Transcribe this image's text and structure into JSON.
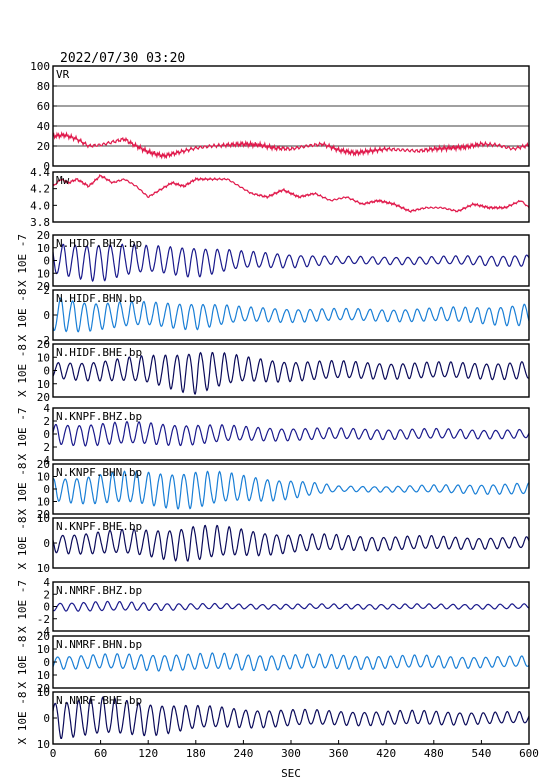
{
  "header": {
    "datetime": "2022/07/30 03:20"
  },
  "x_axis": {
    "label": "SEC",
    "ticks": [
      "0",
      "60",
      "120",
      "180",
      "240",
      "300",
      "360",
      "420",
      "480",
      "540",
      "600"
    ]
  },
  "chart_data": [
    {
      "type": "line",
      "panel": "VR",
      "title": "VR",
      "xlim": [
        0,
        600
      ],
      "ylim": [
        0,
        100
      ],
      "yticks": [
        "100",
        "80",
        "60",
        "40",
        "20",
        "0"
      ],
      "grid": true,
      "color": "#e0194b",
      "ylabel": "",
      "series": [
        {
          "x": [
            0,
            15,
            30,
            45,
            60,
            75,
            90,
            100,
            120,
            140,
            160,
            180,
            200,
            220,
            240,
            260,
            280,
            300,
            320,
            340,
            360,
            380,
            400,
            420,
            440,
            460,
            480,
            500,
            520,
            540,
            560,
            580,
            600
          ],
          "values": [
            30,
            31,
            27,
            20,
            21,
            24,
            27,
            22,
            14,
            10,
            14,
            18,
            20,
            21,
            22,
            21,
            18,
            17,
            20,
            22,
            16,
            13,
            15,
            17,
            16,
            15,
            17,
            18,
            19,
            22,
            21,
            17,
            21
          ]
        }
      ]
    },
    {
      "type": "line",
      "panel": "Mw",
      "title": "Mw",
      "xlim": [
        0,
        600
      ],
      "ylim": [
        3.7,
        4.4
      ],
      "yticks": [
        "4.4",
        "4.2",
        "4.0",
        "3.8"
      ],
      "grid": false,
      "color": "#e0194b",
      "ylabel": "",
      "series": [
        {
          "x": [
            0,
            10,
            20,
            30,
            45,
            60,
            75,
            90,
            105,
            120,
            135,
            150,
            165,
            180,
            200,
            220,
            235,
            250,
            270,
            290,
            310,
            330,
            350,
            370,
            390,
            410,
            430,
            450,
            470,
            490,
            510,
            530,
            550,
            570,
            590,
            600
          ],
          "values": [
            4.2,
            4.3,
            4.25,
            4.3,
            4.2,
            4.35,
            4.25,
            4.3,
            4.2,
            4.05,
            4.15,
            4.25,
            4.2,
            4.3,
            4.3,
            4.3,
            4.2,
            4.1,
            4.05,
            4.15,
            4.05,
            4.1,
            4.0,
            4.05,
            3.95,
            4.0,
            3.95,
            3.85,
            3.9,
            3.9,
            3.85,
            3.95,
            3.9,
            3.9,
            4.0,
            3.9
          ]
        }
      ]
    },
    {
      "type": "line",
      "panel": "wave",
      "title": "N.HIDF.BHZ.bp",
      "ylabel": "X 10E -7",
      "yticks": [
        "20",
        "10",
        "0",
        "10",
        "20"
      ],
      "ylim": [
        -2.4,
        2.4
      ],
      "xlim": [
        0,
        600
      ],
      "color": "#1a1a8c",
      "period": 15,
      "amp_x": [
        0,
        60,
        120,
        180,
        240,
        300,
        360,
        420,
        480,
        540,
        600
      ],
      "amplitude": [
        1.6,
        2.0,
        1.4,
        1.6,
        0.9,
        0.7,
        0.4,
        0.4,
        0.4,
        0.5,
        0.6
      ]
    },
    {
      "type": "line",
      "panel": "wave",
      "title": "N.HIDF.BHN.bp",
      "ylabel": "X 10E -8",
      "yticks": [
        "2",
        "0",
        "-2"
      ],
      "ylim": [
        -3,
        3
      ],
      "xlim": [
        0,
        600
      ],
      "color": "#1a7fd6",
      "period": 15,
      "amp_x": [
        0,
        60,
        120,
        180,
        240,
        300,
        360,
        420,
        480,
        540,
        600
      ],
      "amplitude": [
        2.4,
        1.8,
        1.6,
        1.8,
        1.0,
        0.9,
        0.8,
        0.8,
        0.9,
        1.1,
        1.5
      ]
    },
    {
      "type": "line",
      "panel": "wave",
      "title": "N.HIDF.BHE.bp",
      "ylabel": "X 10E -8",
      "yticks": [
        "20",
        "10",
        "0",
        "10",
        "20"
      ],
      "ylim": [
        -2.4,
        2.4
      ],
      "xlim": [
        0,
        600
      ],
      "color": "#0b0b5a",
      "period": 15,
      "amp_x": [
        0,
        60,
        120,
        180,
        240,
        300,
        360,
        420,
        480,
        540,
        600
      ],
      "amplitude": [
        0.8,
        1.0,
        1.4,
        2.2,
        1.3,
        1.0,
        0.9,
        0.8,
        0.8,
        0.8,
        0.9
      ]
    },
    {
      "type": "line",
      "panel": "wave",
      "title": "N.KNPF.BHZ.bp",
      "ylabel": "X 10E -7",
      "yticks": [
        "4",
        "2",
        "0",
        "2",
        "4"
      ],
      "ylim": [
        -4.2,
        4.2
      ],
      "xlim": [
        0,
        600
      ],
      "color": "#1a1a8c",
      "period": 15,
      "amp_x": [
        0,
        60,
        120,
        180,
        240,
        300,
        360,
        420,
        480,
        540,
        600
      ],
      "amplitude": [
        1.8,
        2.0,
        2.0,
        1.8,
        1.3,
        1.1,
        1.0,
        0.9,
        0.9,
        0.8,
        0.8
      ]
    },
    {
      "type": "line",
      "panel": "wave",
      "title": "N.KNPF.BHN.bp",
      "ylabel": "X 10E -8",
      "yticks": [
        "20",
        "10",
        "0",
        "10",
        "20"
      ],
      "ylim": [
        -2.4,
        2.4
      ],
      "xlim": [
        0,
        600
      ],
      "color": "#1a7fd6",
      "period": 15,
      "amp_x": [
        0,
        60,
        120,
        180,
        240,
        300,
        360,
        420,
        480,
        540,
        600
      ],
      "amplitude": [
        1.2,
        1.6,
        1.8,
        2.0,
        1.4,
        1.0,
        0.3,
        0.3,
        0.4,
        0.5,
        0.6
      ]
    },
    {
      "type": "line",
      "panel": "wave",
      "title": "N.KNPF.BHE.bp",
      "ylabel": "X 10E -8",
      "yticks": [
        "10",
        "0",
        "10"
      ],
      "ylim": [
        -2.0,
        2.0
      ],
      "xlim": [
        0,
        600
      ],
      "color": "#0b0b5a",
      "period": 15,
      "amp_x": [
        0,
        60,
        120,
        180,
        240,
        300,
        360,
        420,
        480,
        540,
        600
      ],
      "amplitude": [
        0.8,
        1.0,
        1.2,
        1.6,
        1.2,
        0.8,
        0.7,
        0.6,
        0.6,
        0.5,
        0.5
      ]
    },
    {
      "type": "line",
      "panel": "wave",
      "title": "N.NMRF.BHZ.bp",
      "ylabel": "X 10E -7",
      "yticks": [
        "4",
        "2",
        "0",
        "-2",
        "-4"
      ],
      "ylim": [
        -4.6,
        4.6
      ],
      "xlim": [
        0,
        600
      ],
      "color": "#1a1a8c",
      "period": 15,
      "amp_x": [
        0,
        60,
        120,
        180,
        240,
        300,
        360,
        420,
        480,
        540,
        600
      ],
      "amplitude": [
        0.8,
        1.0,
        0.8,
        0.6,
        0.5,
        0.5,
        0.5,
        0.5,
        0.5,
        0.5,
        0.5
      ]
    },
    {
      "type": "line",
      "panel": "wave",
      "title": "N.NMRF.BHN.bp",
      "ylabel": "X 10E -8",
      "yticks": [
        "20",
        "10",
        "0",
        "10",
        "20"
      ],
      "ylim": [
        -2.6,
        2.6
      ],
      "xlim": [
        0,
        600
      ],
      "color": "#1a7fd6",
      "period": 15,
      "amp_x": [
        0,
        60,
        120,
        180,
        240,
        300,
        360,
        420,
        480,
        540,
        600
      ],
      "amplitude": [
        0.7,
        0.8,
        0.9,
        0.9,
        0.9,
        0.8,
        0.8,
        0.7,
        0.7,
        0.6,
        0.6
      ]
    },
    {
      "type": "line",
      "panel": "wave",
      "title": "N.NMRF.BHE.bp",
      "ylabel": "X 10E -8",
      "yticks": [
        "10",
        "0",
        "10"
      ],
      "ylim": [
        -2.0,
        2.0
      ],
      "xlim": [
        0,
        600
      ],
      "color": "#0b0b5a",
      "period": 15,
      "amp_x": [
        0,
        60,
        120,
        180,
        240,
        300,
        360,
        420,
        480,
        540,
        600
      ],
      "amplitude": [
        1.6,
        1.6,
        1.4,
        1.0,
        0.8,
        0.7,
        0.6,
        0.6,
        0.6,
        0.5,
        0.5
      ]
    }
  ]
}
